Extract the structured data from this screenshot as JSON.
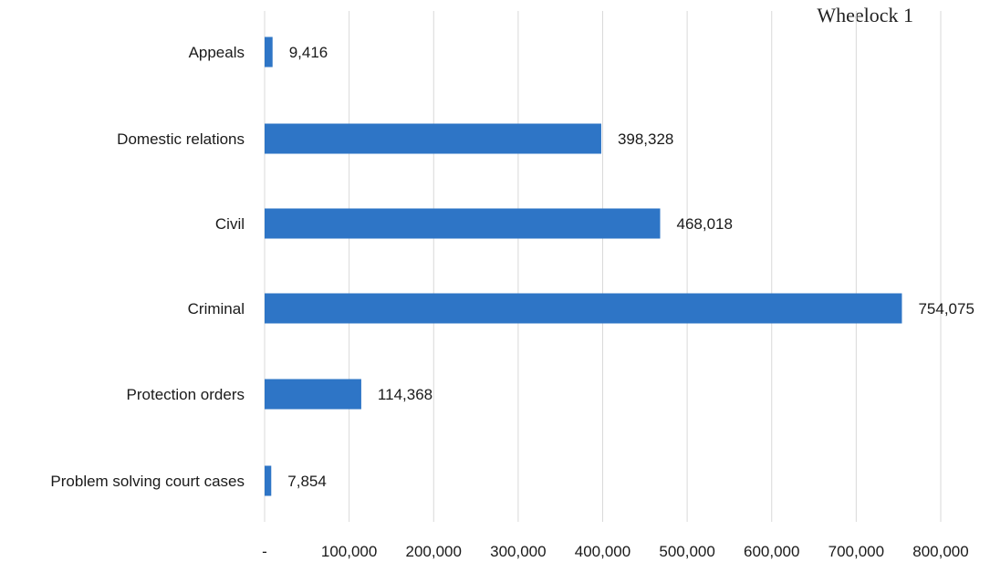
{
  "corner_note": "Wheelock 1",
  "chart_data": {
    "type": "bar",
    "orientation": "horizontal",
    "title": "",
    "xlabel": "",
    "ylabel": "",
    "categories": [
      "Appeals",
      "Domestic relations",
      "Civil",
      "Criminal",
      "Protection orders",
      "Problem solving court cases"
    ],
    "values": [
      9416,
      398328,
      468018,
      754075,
      114368,
      7854
    ],
    "value_labels": [
      "9,416",
      "398,328",
      "468,018",
      "754,075",
      "114,368",
      "7,854"
    ],
    "xlim": [
      0,
      800000
    ],
    "x_ticks": [
      0,
      100000,
      200000,
      300000,
      400000,
      500000,
      600000,
      700000,
      800000
    ],
    "x_tick_labels": [
      "-",
      "100,000",
      "200,000",
      "300,000",
      "400,000",
      "500,000",
      "600,000",
      "700,000",
      "800,000"
    ],
    "grid": "vertical",
    "legend": "none",
    "bar_color": "#2e75c6",
    "grid_color": "#d9d9d9"
  }
}
